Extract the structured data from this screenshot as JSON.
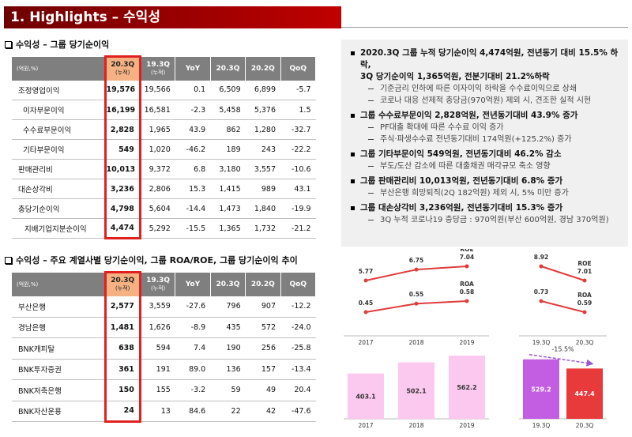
{
  "header": {
    "title": "1. Highlights – 수익성"
  },
  "section1": {
    "title": "수익성 – 그룹 당기순이익",
    "table": {
      "unit": "(억원,%)",
      "columns": [
        {
          "label": "20.3Q",
          "note": "(누적)"
        },
        {
          "label": "19.3Q",
          "note": "(누적)"
        },
        {
          "label": "YoY"
        },
        {
          "label": "20.3Q"
        },
        {
          "label": "20.2Q"
        },
        {
          "label": "QoQ"
        }
      ],
      "rows": [
        [
          "조정영업이익",
          "19,576",
          "19,566",
          "0.1",
          "6,509",
          "6,899",
          "-5.7"
        ],
        [
          "이자부문이익",
          "16,199",
          "16,581",
          "-2.3",
          "5,458",
          "5,376",
          "1.5"
        ],
        [
          "수수료부문이익",
          "2,828",
          "1,965",
          "43.9",
          "862",
          "1,280",
          "-32.7"
        ],
        [
          "기타부문이익",
          "549",
          "1,020",
          "-46.2",
          "189",
          "243",
          "-22.2"
        ],
        [
          "판매관리비",
          "10,013",
          "9,372",
          "6.8",
          "3,180",
          "3,557",
          "-10.6"
        ],
        [
          "대손상각비",
          "3,236",
          "2,806",
          "15.3",
          "1,415",
          "989",
          "43.1"
        ],
        [
          "충당기순이익",
          "4,798",
          "5,604",
          "-14.4",
          "1,473",
          "1,840",
          "-19.9"
        ],
        [
          "지배기업지분순이익",
          "4,474",
          "5,292",
          "-15.5",
          "1,365",
          "1,732",
          "-21.2"
        ]
      ]
    }
  },
  "highlights": [
    {
      "lines": [
        "2020.3Q 그룹 누적 당기순이익 4,474억원, 전년동기 대비 15.5% 하락,",
        "3Q 당기순이익 1,365억원, 전분기대비 21.2%하락"
      ],
      "subs": [
        "기준금리 인하에 따른 이자이익 하락을 수수료이익으로 상쇄",
        "코로나 대응 선제적 충당금(970억원) 제외 시, 견조한 실적 시현"
      ]
    },
    {
      "lines": [
        "그룹 수수료부문이익 2,828억원, 전년동기대비 43.9% 증가"
      ],
      "subs": [
        "PF대출 확대에 따른 수수료 이익 증가",
        "주식·파생수수료 전년동기대비 174억원(+125.2%) 증가"
      ]
    },
    {
      "lines": [
        "그룹 기타부문이익 549억원, 전년동기대비 46.2% 감소"
      ],
      "subs": [
        "부도/도산 감소에 따른 대출채권 매각규모 축소 영향"
      ]
    },
    {
      "lines": [
        "그룹 판매관리비 10,013억원, 전년동기대비 6.8% 증가"
      ],
      "subs": [
        "부산은행 희망퇴직(2Q 182억원) 제외 시, 5% 미만 증가"
      ]
    },
    {
      "lines": [
        "그룹 대손상각비 3,236억원, 전년동기대비 15.3% 증가"
      ],
      "subs": [
        "3Q 누적 코로나19 충당금 : 970억원(부산 600억원, 경남 370억원)"
      ]
    }
  ],
  "section2": {
    "title": "수익성 – 주요 계열사별 당기순이익, 그룹 ROA/ROE, 그룹 당기순이익 추이",
    "table": {
      "unit": "(억원,%)",
      "columns": [
        {
          "label": "20.3Q",
          "note": "(누적)"
        },
        {
          "label": "19.3Q",
          "note": "(누적)"
        },
        {
          "label": "YoY"
        },
        {
          "label": "20.3Q"
        },
        {
          "label": "20.2Q"
        },
        {
          "label": "QoQ"
        }
      ],
      "rows": [
        [
          "부산은행",
          "2,577",
          "3,559",
          "-27.6",
          "796",
          "907",
          "-12.2"
        ],
        [
          "경남은행",
          "1,481",
          "1,626",
          "-8.9",
          "435",
          "572",
          "-24.0"
        ],
        [
          "BNK캐피탈",
          "638",
          "594",
          "7.4",
          "190",
          "256",
          "-25.8"
        ],
        [
          "BNK투자증권",
          "361",
          "191",
          "89.0",
          "136",
          "157",
          "-13.4"
        ],
        [
          "BNK저축은행",
          "150",
          "155",
          "-3.2",
          "59",
          "49",
          "20.4"
        ],
        [
          "BNK자산운용",
          "24",
          "13",
          "84.6",
          "22",
          "42",
          "-47.6"
        ]
      ]
    }
  },
  "charts": [
    {
      "type": "line",
      "categories": [
        "2017",
        "2018",
        "2019"
      ],
      "series": [
        {
          "name": "ROE",
          "color": "#e03c3c",
          "values": [
            5.77,
            6.75,
            7.04
          ]
        },
        {
          "name": "ROA",
          "color": "#e03c3c",
          "values": [
            0.45,
            0.55,
            0.58
          ]
        }
      ]
    },
    {
      "type": "line",
      "categories": [
        "19.3Q",
        "20.3Q"
      ],
      "series": [
        {
          "name": "ROE",
          "color": "#e03c3c",
          "values": [
            8.92,
            7.01
          ]
        },
        {
          "name": "ROA",
          "color": "#e03c3c",
          "values": [
            0.73,
            0.59
          ]
        }
      ]
    },
    {
      "type": "bar",
      "categories": [
        "2017",
        "2018",
        "2019"
      ],
      "values": [
        403.1,
        502.1,
        562.2
      ],
      "colors": [
        "#fbc8ef",
        "#fbc8ef",
        "#fbc8ef"
      ]
    },
    {
      "type": "bar",
      "categories": [
        "19.3Q",
        "20.3Q"
      ],
      "values": [
        529.2,
        447.4
      ],
      "colors": [
        "#c35ee3",
        "#e8393b"
      ],
      "annotation": "-15.5%"
    }
  ]
}
